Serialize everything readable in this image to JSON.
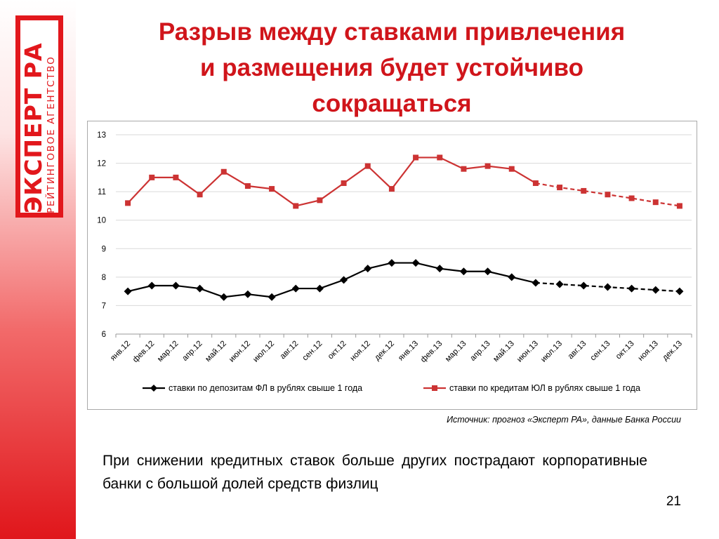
{
  "logo": {
    "main_text": "ЭКСПЕРТ РА",
    "sub_text": "РЕЙТИНГОВОЕ АГЕНТСТВО"
  },
  "slide": {
    "title_line1": "Разрыв между ставками привлечения",
    "title_line2": "и размещения будет устойчиво",
    "title_line3": "сокращаться",
    "source": "Источник: прогноз «Эксперт РА», данные Банка России",
    "bottom_text": "При снижении кредитных ставок больше других пострадают корпоративные банки с большой долей средств физлиц",
    "page_number": "21"
  },
  "colors": {
    "accent": "#d0151b",
    "deposit_series": "#000000",
    "credit_series": "#cc3333",
    "gridline": "#d9d9d9"
  },
  "chart_data": {
    "type": "line",
    "title": "",
    "xlabel": "",
    "ylabel": "",
    "ylim": [
      6,
      13
    ],
    "yticks": [
      6,
      7,
      8,
      9,
      10,
      11,
      12,
      13
    ],
    "grid": true,
    "legend_position": "bottom",
    "categories": [
      "янв.12",
      "фев.12",
      "мар.12",
      "апр.12",
      "май.12",
      "июн.12",
      "июл.12",
      "авг.12",
      "сен.12",
      "окт.12",
      "ноя.12",
      "дек.12",
      "янв.13",
      "фев.13",
      "мар.13",
      "апр.13",
      "май.13",
      "июн.13",
      "июл.13",
      "авг.13",
      "сен.13",
      "окт.13",
      "ноя.13",
      "дек.13"
    ],
    "forecast_start_index": 17,
    "series": [
      {
        "name": "ставки по депозитам ФЛ в рублях свыше 1 года",
        "color": "#000000",
        "marker": "diamond",
        "values": [
          7.5,
          7.7,
          7.7,
          7.6,
          7.3,
          7.4,
          7.3,
          7.6,
          7.6,
          7.9,
          8.3,
          8.5,
          8.5,
          8.3,
          8.2,
          8.2,
          8.0,
          7.8,
          7.75,
          7.7,
          7.65,
          7.6,
          7.55,
          7.5
        ]
      },
      {
        "name": "ставки по кредитам ЮЛ в рублях свыше 1 года",
        "color": "#cc3333",
        "marker": "square",
        "values": [
          10.6,
          11.5,
          11.5,
          10.9,
          11.7,
          11.2,
          11.1,
          10.5,
          10.7,
          11.3,
          11.9,
          11.1,
          12.2,
          12.2,
          11.8,
          11.9,
          11.8,
          11.3,
          11.15,
          11.03,
          10.9,
          10.77,
          10.63,
          10.5
        ]
      }
    ]
  }
}
